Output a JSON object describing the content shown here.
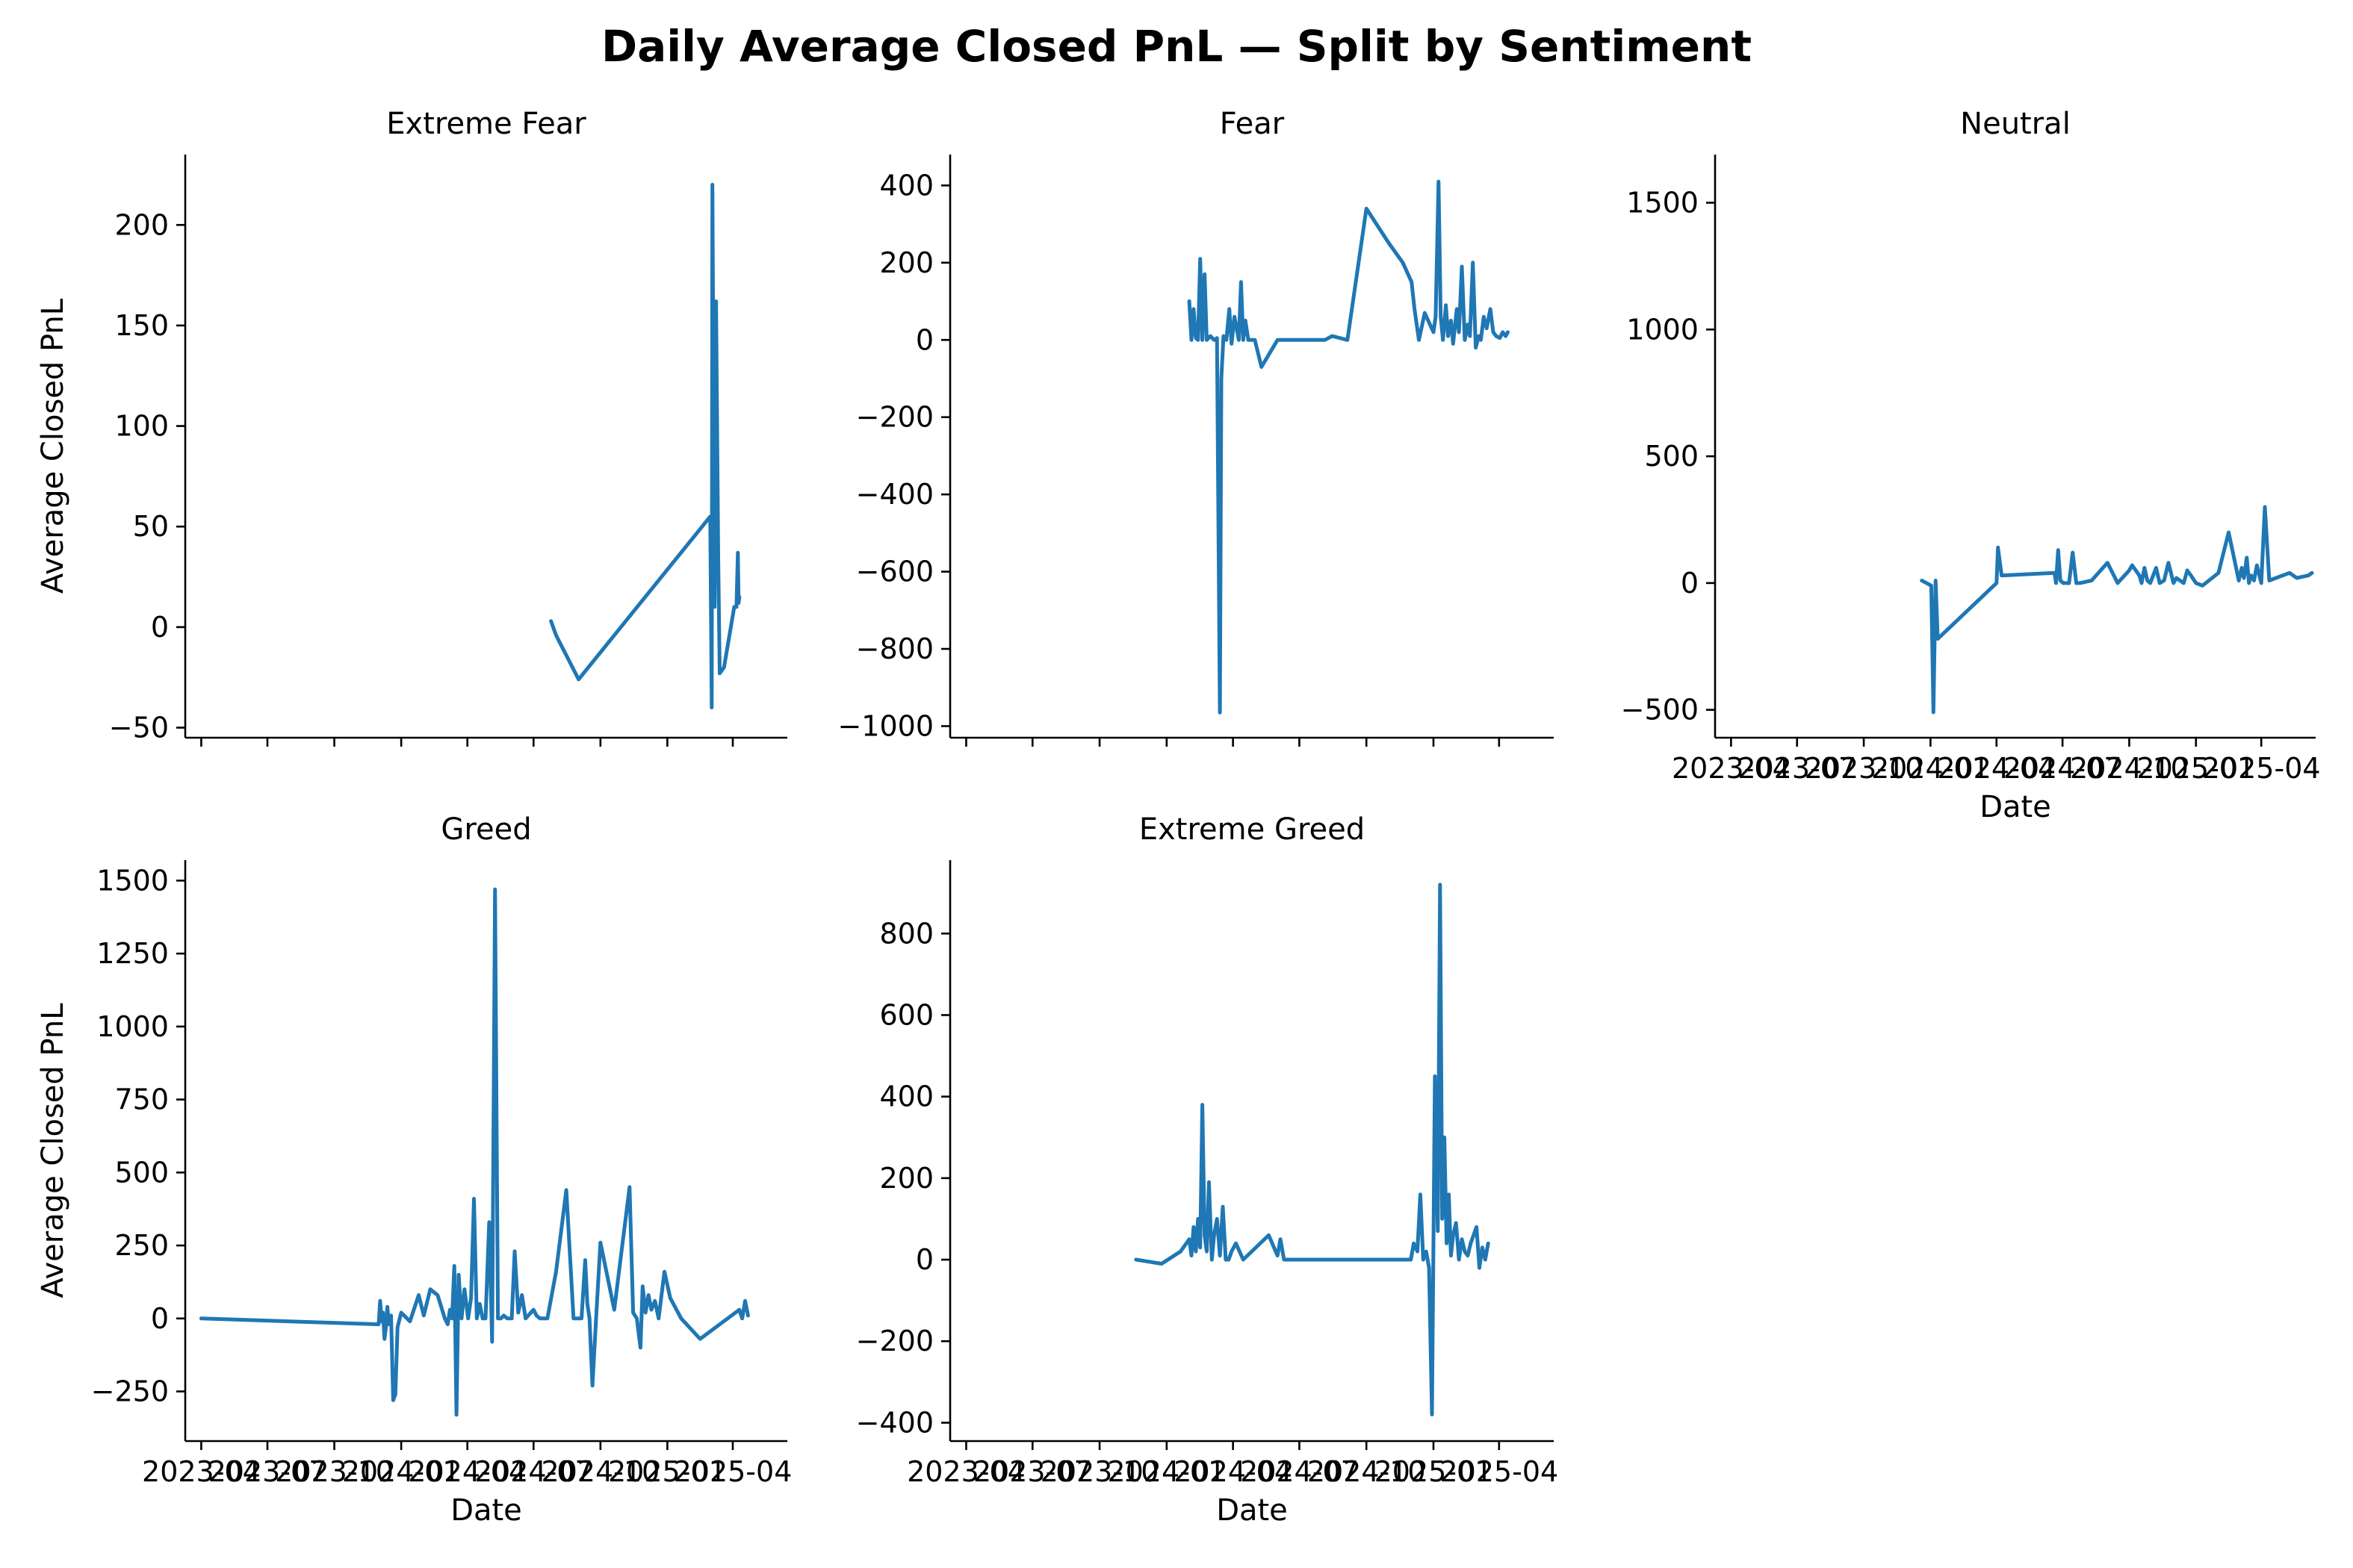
{
  "figure": {
    "title": "Daily Average Closed PnL — Split by Sentiment",
    "line_color": "#1f77b4"
  },
  "chart_data": [
    {
      "type": "line",
      "title": "Extreme Fear",
      "xlabel": "",
      "ylabel": "Average Closed PnL",
      "xlim": [
        "2023-03-10",
        "2025-06-15"
      ],
      "ylim": [
        -55,
        235
      ],
      "yticks": [
        -50,
        0,
        50,
        100,
        150,
        200
      ],
      "xticks": [
        "2023-04",
        "2023-07",
        "2023-10",
        "2024-01",
        "2024-04",
        "2024-07",
        "2024-10",
        "2025-01",
        "2025-04"
      ],
      "xtick_labels_visible": false,
      "series": [
        {
          "x": [
            "2024-07-25",
            "2024-08-01",
            "2024-09-01",
            "2025-03-01",
            "2025-03-03",
            "2025-03-04",
            "2025-03-07",
            "2025-03-09",
            "2025-03-12",
            "2025-03-14",
            "2025-03-20",
            "2025-04-03",
            "2025-04-06",
            "2025-04-08",
            "2025-04-09",
            "2025-04-10"
          ],
          "y": [
            3,
            -4,
            -26,
            55,
            -40,
            220,
            10,
            162,
            35,
            -23,
            -20,
            10,
            10,
            37,
            12,
            15
          ]
        }
      ]
    },
    {
      "type": "line",
      "title": "Fear",
      "xlabel": "",
      "ylabel": "",
      "xlim": [
        "2023-03-10",
        "2025-06-15"
      ],
      "ylim": [
        -1030,
        480
      ],
      "yticks": [
        -1000,
        -800,
        -600,
        -400,
        -200,
        0,
        200,
        400
      ],
      "xticks": [
        "2023-04",
        "2023-07",
        "2023-10",
        "2024-01",
        "2024-04",
        "2024-07",
        "2024-10",
        "2025-01",
        "2025-04"
      ],
      "xtick_labels_visible": false,
      "series": [
        {
          "x": [
            "2024-02-01",
            "2024-02-04",
            "2024-02-07",
            "2024-02-10",
            "2024-02-13",
            "2024-02-16",
            "2024-02-19",
            "2024-02-22",
            "2024-02-25",
            "2024-03-01",
            "2024-03-06",
            "2024-03-10",
            "2024-03-14",
            "2024-03-16",
            "2024-03-19",
            "2024-03-23",
            "2024-03-27",
            "2024-03-30",
            "2024-04-03",
            "2024-04-06",
            "2024-04-09",
            "2024-04-12",
            "2024-04-15",
            "2024-04-18",
            "2024-04-22",
            "2024-04-26",
            "2024-05-01",
            "2024-05-10",
            "2024-06-01",
            "2024-07-01",
            "2024-08-05",
            "2024-08-15",
            "2024-09-05",
            "2024-10-01",
            "2024-11-01",
            "2024-11-20",
            "2024-12-02",
            "2024-12-06",
            "2024-12-12",
            "2024-12-20",
            "2025-01-01",
            "2025-01-04",
            "2025-01-08",
            "2025-01-11",
            "2025-01-14",
            "2025-01-18",
            "2025-01-21",
            "2025-01-25",
            "2025-01-28",
            "2025-02-02",
            "2025-02-05",
            "2025-02-09",
            "2025-02-13",
            "2025-02-17",
            "2025-02-20",
            "2025-02-24",
            "2025-02-28",
            "2025-03-04",
            "2025-03-07",
            "2025-03-11",
            "2025-03-15",
            "2025-03-20",
            "2025-03-24",
            "2025-03-28",
            "2025-04-02",
            "2025-04-06",
            "2025-04-10",
            "2025-04-13"
          ],
          "y": [
            100,
            0,
            80,
            5,
            0,
            210,
            0,
            170,
            0,
            10,
            0,
            5,
            -965,
            -100,
            10,
            0,
            80,
            -10,
            60,
            30,
            0,
            150,
            0,
            50,
            0,
            0,
            0,
            -70,
            0,
            0,
            0,
            10,
            0,
            340,
            250,
            200,
            150,
            80,
            0,
            70,
            20,
            60,
            410,
            60,
            0,
            90,
            10,
            50,
            -10,
            80,
            20,
            190,
            0,
            40,
            10,
            200,
            -20,
            10,
            0,
            60,
            30,
            80,
            20,
            10,
            5,
            20,
            10,
            20
          ]
        }
      ]
    },
    {
      "type": "line",
      "title": "Neutral",
      "xlabel": "Date",
      "ylabel": "",
      "xlim": [
        "2023-03-10",
        "2025-06-15"
      ],
      "ylim": [
        -610,
        1690
      ],
      "yticks": [
        -500,
        0,
        500,
        1000,
        1500
      ],
      "xticks": [
        "2023-04",
        "2023-07",
        "2023-10",
        "2024-01",
        "2024-04",
        "2024-07",
        "2024-10",
        "2025-01",
        "2025-04"
      ],
      "xtick_labels_visible": true,
      "series": [
        {
          "x": [
            "2023-12-20",
            "2024-01-02",
            "2024-01-05",
            "2024-01-08",
            "2024-01-11",
            "2024-04-01",
            "2024-04-03",
            "2024-04-08",
            "2024-06-20",
            "2024-06-22",
            "2024-06-25",
            "2024-06-28",
            "2024-07-02",
            "2024-07-05",
            "2024-07-10",
            "2024-07-15",
            "2024-07-20",
            "2024-07-25",
            "2024-08-10",
            "2024-09-01",
            "2024-09-15",
            "2024-10-01",
            "2024-10-05",
            "2024-10-15",
            "2024-10-18",
            "2024-10-22",
            "2024-10-26",
            "2024-10-30",
            "2024-11-03",
            "2024-11-07",
            "2024-11-12",
            "2024-11-18",
            "2024-11-24",
            "2024-12-01",
            "2024-12-05",
            "2024-12-10",
            "2024-12-15",
            "2024-12-20",
            "2024-12-25",
            "2025-01-01",
            "2025-01-10",
            "2025-02-01",
            "2025-02-15",
            "2025-03-01",
            "2025-03-05",
            "2025-03-08",
            "2025-03-12",
            "2025-03-15",
            "2025-03-18",
            "2025-03-22",
            "2025-03-26",
            "2025-04-01",
            "2025-04-06",
            "2025-04-12",
            "2025-05-10",
            "2025-05-20",
            "2025-06-05",
            "2025-06-10"
          ],
          "y": [
            10,
            -10,
            -510,
            10,
            -220,
            0,
            140,
            30,
            40,
            0,
            130,
            10,
            0,
            0,
            0,
            120,
            0,
            0,
            10,
            80,
            0,
            50,
            70,
            30,
            0,
            60,
            10,
            0,
            30,
            60,
            0,
            10,
            80,
            0,
            20,
            10,
            0,
            50,
            30,
            0,
            -10,
            40,
            200,
            10,
            60,
            20,
            100,
            0,
            30,
            10,
            70,
            0,
            300,
            10,
            40,
            20,
            30,
            40
          ]
        }
      ]
    },
    {
      "type": "line",
      "title": "Greed",
      "xlabel": "Date",
      "ylabel": "Average Closed PnL",
      "xlim": [
        "2023-03-10",
        "2025-06-15"
      ],
      "ylim": [
        -420,
        1570
      ],
      "yticks": [
        -250,
        0,
        250,
        500,
        750,
        1000,
        1250,
        1500
      ],
      "xticks": [
        "2023-04",
        "2023-07",
        "2023-10",
        "2024-01",
        "2024-04",
        "2024-07",
        "2024-10",
        "2025-01",
        "2025-04"
      ],
      "xtick_labels_visible": true,
      "series": [
        {
          "x": [
            "2023-04-01",
            "2023-12-01",
            "2023-12-03",
            "2023-12-05",
            "2023-12-07",
            "2023-12-09",
            "2023-12-11",
            "2023-12-13",
            "2023-12-15",
            "2023-12-18",
            "2023-12-21",
            "2023-12-24",
            "2023-12-27",
            "2024-01-01",
            "2024-01-05",
            "2024-01-09",
            "2024-01-13",
            "2024-01-17",
            "2024-01-21",
            "2024-01-25",
            "2024-02-01",
            "2024-02-10",
            "2024-02-20",
            "2024-03-01",
            "2024-03-05",
            "2024-03-08",
            "2024-03-11",
            "2024-03-14",
            "2024-03-17",
            "2024-03-20",
            "2024-03-24",
            "2024-03-28",
            "2024-04-02",
            "2024-04-06",
            "2024-04-10",
            "2024-04-14",
            "2024-04-18",
            "2024-04-22",
            "2024-04-26",
            "2024-05-01",
            "2024-05-05",
            "2024-05-09",
            "2024-05-13",
            "2024-05-17",
            "2024-05-21",
            "2024-05-26",
            "2024-06-01",
            "2024-06-05",
            "2024-06-10",
            "2024-06-15",
            "2024-06-20",
            "2024-07-01",
            "2024-07-05",
            "2024-07-10",
            "2024-07-20",
            "2024-08-01",
            "2024-08-15",
            "2024-08-25",
            "2024-09-05",
            "2024-09-10",
            "2024-09-13",
            "2024-09-16",
            "2024-09-20",
            "2024-09-25",
            "2024-10-01",
            "2024-10-20",
            "2024-11-10",
            "2024-11-15",
            "2024-11-20",
            "2024-11-25",
            "2024-11-28",
            "2024-12-02",
            "2024-12-06",
            "2024-12-10",
            "2024-12-15",
            "2024-12-20",
            "2024-12-28",
            "2025-01-05",
            "2025-01-20",
            "2025-02-15",
            "2025-04-10",
            "2025-04-14",
            "2025-04-18",
            "2025-04-22"
          ],
          "y": [
            0,
            -20,
            60,
            -10,
            20,
            -70,
            -30,
            40,
            -20,
            10,
            -280,
            -260,
            -30,
            20,
            10,
            0,
            -10,
            20,
            50,
            80,
            10,
            100,
            80,
            0,
            -20,
            30,
            0,
            180,
            -330,
            150,
            0,
            100,
            0,
            70,
            410,
            0,
            50,
            0,
            0,
            330,
            -80,
            1470,
            0,
            0,
            10,
            0,
            0,
            230,
            20,
            80,
            0,
            30,
            10,
            0,
            0,
            160,
            440,
            0,
            0,
            200,
            50,
            0,
            -230,
            0,
            260,
            30,
            450,
            20,
            0,
            -100,
            110,
            20,
            80,
            30,
            60,
            0,
            160,
            70,
            0,
            -70,
            30,
            0,
            60,
            10
          ]
        }
      ]
    },
    {
      "type": "line",
      "title": "Extreme Greed",
      "xlabel": "Date",
      "ylabel": "",
      "xlim": [
        "2023-03-10",
        "2025-06-15"
      ],
      "ylim": [
        -445,
        980
      ],
      "yticks": [
        -400,
        -200,
        0,
        200,
        400,
        600,
        800
      ],
      "xticks": [
        "2023-04",
        "2023-07",
        "2023-10",
        "2024-01",
        "2024-04",
        "2024-07",
        "2024-10",
        "2025-01",
        "2025-04"
      ],
      "xtick_labels_visible": true,
      "series": [
        {
          "x": [
            "2023-11-20",
            "2023-12-25",
            "2024-01-20",
            "2024-02-01",
            "2024-02-04",
            "2024-02-07",
            "2024-02-10",
            "2024-02-13",
            "2024-02-16",
            "2024-02-19",
            "2024-02-22",
            "2024-02-25",
            "2024-02-28",
            "2024-03-03",
            "2024-03-06",
            "2024-03-10",
            "2024-03-14",
            "2024-03-18",
            "2024-03-22",
            "2024-03-26",
            "2024-03-30",
            "2024-04-05",
            "2024-04-15",
            "2024-05-20",
            "2024-06-01",
            "2024-06-05",
            "2024-06-10",
            "2024-06-15",
            "2024-07-01",
            "2024-08-01",
            "2024-10-01",
            "2024-12-01",
            "2024-12-05",
            "2024-12-10",
            "2024-12-14",
            "2024-12-18",
            "2024-12-22",
            "2024-12-26",
            "2024-12-30",
            "2025-01-03",
            "2025-01-07",
            "2025-01-10",
            "2025-01-13",
            "2025-01-16",
            "2025-01-19",
            "2025-01-22",
            "2025-01-25",
            "2025-01-28",
            "2025-02-01",
            "2025-02-05",
            "2025-02-09",
            "2025-02-13",
            "2025-02-17",
            "2025-02-21",
            "2025-02-25",
            "2025-03-01",
            "2025-03-05",
            "2025-03-09",
            "2025-03-13",
            "2025-03-17"
          ],
          "y": [
            0,
            -10,
            20,
            50,
            10,
            80,
            20,
            100,
            30,
            380,
            60,
            20,
            190,
            0,
            60,
            100,
            10,
            130,
            0,
            0,
            20,
            40,
            0,
            60,
            10,
            50,
            0,
            0,
            0,
            0,
            0,
            0,
            40,
            20,
            160,
            0,
            20,
            -20,
            -380,
            450,
            70,
            920,
            100,
            300,
            40,
            160,
            10,
            60,
            90,
            0,
            50,
            20,
            10,
            40,
            60,
            80,
            -20,
            30,
            0,
            40
          ]
        }
      ]
    }
  ]
}
